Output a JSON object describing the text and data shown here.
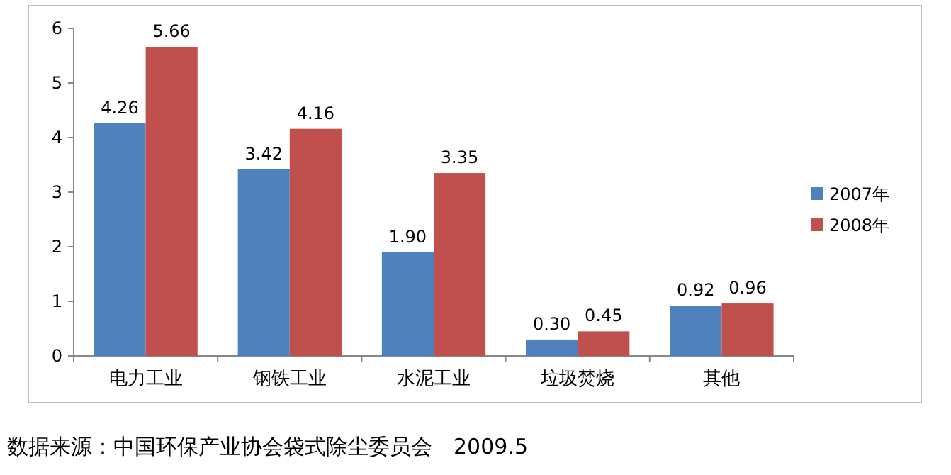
{
  "chart_data": {
    "type": "bar",
    "categories": [
      "电力工业",
      "钢铁工业",
      "水泥工业",
      "垃圾焚烧",
      "其他"
    ],
    "series": [
      {
        "name": "2007年",
        "color": "#4f81bd",
        "values": [
          4.26,
          3.42,
          1.9,
          0.3,
          0.92
        ],
        "value_labels": [
          "4.26",
          "3.42",
          "1.90",
          "0.30",
          "0.92"
        ]
      },
      {
        "name": "2008年",
        "color": "#c0504d",
        "values": [
          5.66,
          4.16,
          3.35,
          0.45,
          0.96
        ],
        "value_labels": [
          "5.66",
          "4.16",
          "3.35",
          "0.45",
          "0.96"
        ]
      }
    ],
    "ylim": [
      0,
      6
    ],
    "yticks": [
      0,
      1,
      2,
      3,
      4,
      5,
      6
    ],
    "legend": "right",
    "annotations": [
      "数据来源：中国环保产业协会袋式除尘委员会　2009.5"
    ]
  }
}
